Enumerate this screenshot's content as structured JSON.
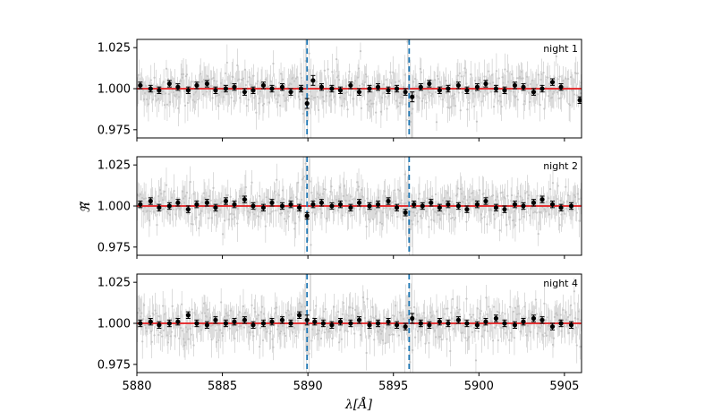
{
  "chart_data": [
    {
      "type": "scatter",
      "panel_label": "night 1",
      "xlim": [
        5880,
        5906
      ],
      "ylim": [
        0.97,
        1.03
      ],
      "yticks": [
        "0.975",
        "1.000",
        "1.025"
      ],
      "vlines_x": [
        5889.95,
        5895.92
      ],
      "model_line_y": 1.0,
      "binned_points": [
        {
          "x": 5880.2,
          "y": 1.002,
          "err": 0.002
        },
        {
          "x": 5880.8,
          "y": 1.0,
          "err": 0.002
        },
        {
          "x": 5881.3,
          "y": 0.999,
          "err": 0.002
        },
        {
          "x": 5881.9,
          "y": 1.003,
          "err": 0.002
        },
        {
          "x": 5882.4,
          "y": 1.001,
          "err": 0.002
        },
        {
          "x": 5883.0,
          "y": 0.999,
          "err": 0.002
        },
        {
          "x": 5883.5,
          "y": 1.002,
          "err": 0.002
        },
        {
          "x": 5884.1,
          "y": 1.003,
          "err": 0.002
        },
        {
          "x": 5884.6,
          "y": 0.999,
          "err": 0.002
        },
        {
          "x": 5885.2,
          "y": 1.0,
          "err": 0.002
        },
        {
          "x": 5885.7,
          "y": 1.001,
          "err": 0.002
        },
        {
          "x": 5886.3,
          "y": 0.998,
          "err": 0.002
        },
        {
          "x": 5886.8,
          "y": 0.999,
          "err": 0.002
        },
        {
          "x": 5887.4,
          "y": 1.002,
          "err": 0.002
        },
        {
          "x": 5887.9,
          "y": 1.0,
          "err": 0.002
        },
        {
          "x": 5888.5,
          "y": 1.001,
          "err": 0.002
        },
        {
          "x": 5889.0,
          "y": 0.998,
          "err": 0.002
        },
        {
          "x": 5889.6,
          "y": 1.0,
          "err": 0.002
        },
        {
          "x": 5889.95,
          "y": 0.991,
          "err": 0.003
        },
        {
          "x": 5890.3,
          "y": 1.005,
          "err": 0.003
        },
        {
          "x": 5890.8,
          "y": 1.001,
          "err": 0.002
        },
        {
          "x": 5891.4,
          "y": 1.0,
          "err": 0.002
        },
        {
          "x": 5891.9,
          "y": 0.999,
          "err": 0.002
        },
        {
          "x": 5892.5,
          "y": 1.002,
          "err": 0.002
        },
        {
          "x": 5893.0,
          "y": 0.998,
          "err": 0.002
        },
        {
          "x": 5893.6,
          "y": 1.0,
          "err": 0.002
        },
        {
          "x": 5894.1,
          "y": 1.001,
          "err": 0.002
        },
        {
          "x": 5894.7,
          "y": 0.999,
          "err": 0.002
        },
        {
          "x": 5895.2,
          "y": 1.0,
          "err": 0.002
        },
        {
          "x": 5895.7,
          "y": 0.998,
          "err": 0.002
        },
        {
          "x": 5896.1,
          "y": 0.995,
          "err": 0.003
        },
        {
          "x": 5896.6,
          "y": 1.001,
          "err": 0.002
        },
        {
          "x": 5897.1,
          "y": 1.003,
          "err": 0.002
        },
        {
          "x": 5897.7,
          "y": 0.999,
          "err": 0.002
        },
        {
          "x": 5898.2,
          "y": 1.0,
          "err": 0.002
        },
        {
          "x": 5898.8,
          "y": 1.002,
          "err": 0.002
        },
        {
          "x": 5899.3,
          "y": 0.999,
          "err": 0.002
        },
        {
          "x": 5899.9,
          "y": 1.001,
          "err": 0.002
        },
        {
          "x": 5900.4,
          "y": 1.003,
          "err": 0.002
        },
        {
          "x": 5901.0,
          "y": 1.0,
          "err": 0.002
        },
        {
          "x": 5901.5,
          "y": 0.999,
          "err": 0.002
        },
        {
          "x": 5902.1,
          "y": 1.002,
          "err": 0.002
        },
        {
          "x": 5902.6,
          "y": 1.001,
          "err": 0.002
        },
        {
          "x": 5903.2,
          "y": 0.998,
          "err": 0.002
        },
        {
          "x": 5903.7,
          "y": 1.0,
          "err": 0.002
        },
        {
          "x": 5904.3,
          "y": 1.004,
          "err": 0.002
        },
        {
          "x": 5904.8,
          "y": 1.001,
          "err": 0.002
        },
        {
          "x": 5905.9,
          "y": 0.993,
          "err": 0.002
        }
      ]
    },
    {
      "type": "scatter",
      "panel_label": "night 2",
      "xlim": [
        5880,
        5906
      ],
      "ylim": [
        0.97,
        1.03
      ],
      "yticks": [
        "0.975",
        "1.000",
        "1.025"
      ],
      "vlines_x": [
        5889.95,
        5895.92
      ],
      "model_line_y": 1.0,
      "binned_points": [
        {
          "x": 5880.2,
          "y": 1.001,
          "err": 0.002
        },
        {
          "x": 5880.8,
          "y": 1.003,
          "err": 0.002
        },
        {
          "x": 5881.3,
          "y": 0.999,
          "err": 0.002
        },
        {
          "x": 5881.9,
          "y": 1.0,
          "err": 0.002
        },
        {
          "x": 5882.4,
          "y": 1.002,
          "err": 0.002
        },
        {
          "x": 5883.0,
          "y": 0.998,
          "err": 0.002
        },
        {
          "x": 5883.5,
          "y": 1.001,
          "err": 0.002
        },
        {
          "x": 5884.1,
          "y": 1.002,
          "err": 0.002
        },
        {
          "x": 5884.6,
          "y": 0.999,
          "err": 0.002
        },
        {
          "x": 5885.2,
          "y": 1.003,
          "err": 0.002
        },
        {
          "x": 5885.7,
          "y": 1.001,
          "err": 0.002
        },
        {
          "x": 5886.3,
          "y": 1.004,
          "err": 0.002
        },
        {
          "x": 5886.8,
          "y": 1.0,
          "err": 0.002
        },
        {
          "x": 5887.4,
          "y": 0.999,
          "err": 0.002
        },
        {
          "x": 5887.9,
          "y": 1.002,
          "err": 0.002
        },
        {
          "x": 5888.5,
          "y": 1.0,
          "err": 0.002
        },
        {
          "x": 5889.0,
          "y": 1.001,
          "err": 0.002
        },
        {
          "x": 5889.5,
          "y": 0.999,
          "err": 0.002
        },
        {
          "x": 5889.95,
          "y": 0.994,
          "err": 0.002
        },
        {
          "x": 5890.3,
          "y": 1.001,
          "err": 0.002
        },
        {
          "x": 5890.8,
          "y": 1.002,
          "err": 0.002
        },
        {
          "x": 5891.4,
          "y": 1.0,
          "err": 0.002
        },
        {
          "x": 5891.9,
          "y": 1.001,
          "err": 0.002
        },
        {
          "x": 5892.5,
          "y": 0.999,
          "err": 0.002
        },
        {
          "x": 5893.0,
          "y": 1.002,
          "err": 0.002
        },
        {
          "x": 5893.6,
          "y": 1.0,
          "err": 0.002
        },
        {
          "x": 5894.1,
          "y": 1.001,
          "err": 0.002
        },
        {
          "x": 5894.7,
          "y": 1.003,
          "err": 0.002
        },
        {
          "x": 5895.2,
          "y": 0.999,
          "err": 0.002
        },
        {
          "x": 5895.7,
          "y": 0.996,
          "err": 0.002
        },
        {
          "x": 5896.2,
          "y": 1.001,
          "err": 0.002
        },
        {
          "x": 5896.7,
          "y": 1.0,
          "err": 0.002
        },
        {
          "x": 5897.2,
          "y": 1.002,
          "err": 0.002
        },
        {
          "x": 5897.7,
          "y": 0.999,
          "err": 0.002
        },
        {
          "x": 5898.2,
          "y": 1.001,
          "err": 0.002
        },
        {
          "x": 5898.8,
          "y": 1.0,
          "err": 0.002
        },
        {
          "x": 5899.3,
          "y": 0.998,
          "err": 0.002
        },
        {
          "x": 5899.9,
          "y": 1.001,
          "err": 0.002
        },
        {
          "x": 5900.4,
          "y": 1.003,
          "err": 0.002
        },
        {
          "x": 5901.0,
          "y": 0.999,
          "err": 0.002
        },
        {
          "x": 5901.5,
          "y": 0.998,
          "err": 0.002
        },
        {
          "x": 5902.1,
          "y": 1.001,
          "err": 0.002
        },
        {
          "x": 5902.6,
          "y": 1.0,
          "err": 0.002
        },
        {
          "x": 5903.2,
          "y": 1.002,
          "err": 0.002
        },
        {
          "x": 5903.7,
          "y": 1.004,
          "err": 0.002
        },
        {
          "x": 5904.3,
          "y": 1.001,
          "err": 0.002
        },
        {
          "x": 5904.8,
          "y": 0.999,
          "err": 0.002
        },
        {
          "x": 5905.4,
          "y": 1.0,
          "err": 0.002
        }
      ]
    },
    {
      "type": "scatter",
      "panel_label": "night 4",
      "xlim": [
        5880,
        5906
      ],
      "ylim": [
        0.97,
        1.03
      ],
      "yticks": [
        "0.975",
        "1.000",
        "1.025"
      ],
      "xticks": [
        "5880",
        "5885",
        "5890",
        "5895",
        "5900",
        "5905"
      ],
      "xtick_values": [
        5880,
        5885,
        5890,
        5895,
        5900,
        5905
      ],
      "vlines_x": [
        5889.95,
        5895.92
      ],
      "model_line_y": 1.0,
      "binned_points": [
        {
          "x": 5880.2,
          "y": 1.0,
          "err": 0.002
        },
        {
          "x": 5880.8,
          "y": 1.001,
          "err": 0.002
        },
        {
          "x": 5881.3,
          "y": 0.999,
          "err": 0.002
        },
        {
          "x": 5881.9,
          "y": 1.0,
          "err": 0.002
        },
        {
          "x": 5882.4,
          "y": 1.001,
          "err": 0.002
        },
        {
          "x": 5883.0,
          "y": 1.005,
          "err": 0.002
        },
        {
          "x": 5883.5,
          "y": 1.0,
          "err": 0.002
        },
        {
          "x": 5884.1,
          "y": 0.999,
          "err": 0.002
        },
        {
          "x": 5884.6,
          "y": 1.002,
          "err": 0.002
        },
        {
          "x": 5885.2,
          "y": 1.0,
          "err": 0.002
        },
        {
          "x": 5885.7,
          "y": 1.001,
          "err": 0.002
        },
        {
          "x": 5886.3,
          "y": 1.002,
          "err": 0.002
        },
        {
          "x": 5886.8,
          "y": 0.999,
          "err": 0.002
        },
        {
          "x": 5887.4,
          "y": 1.0,
          "err": 0.002
        },
        {
          "x": 5887.9,
          "y": 1.001,
          "err": 0.002
        },
        {
          "x": 5888.5,
          "y": 1.002,
          "err": 0.002
        },
        {
          "x": 5889.0,
          "y": 1.0,
          "err": 0.002
        },
        {
          "x": 5889.5,
          "y": 1.005,
          "err": 0.002
        },
        {
          "x": 5889.95,
          "y": 1.002,
          "err": 0.003
        },
        {
          "x": 5890.4,
          "y": 1.001,
          "err": 0.002
        },
        {
          "x": 5890.9,
          "y": 1.0,
          "err": 0.002
        },
        {
          "x": 5891.4,
          "y": 0.999,
          "err": 0.002
        },
        {
          "x": 5891.9,
          "y": 1.001,
          "err": 0.002
        },
        {
          "x": 5892.5,
          "y": 1.0,
          "err": 0.002
        },
        {
          "x": 5893.0,
          "y": 1.002,
          "err": 0.002
        },
        {
          "x": 5893.6,
          "y": 0.999,
          "err": 0.002
        },
        {
          "x": 5894.1,
          "y": 1.0,
          "err": 0.002
        },
        {
          "x": 5894.7,
          "y": 1.001,
          "err": 0.002
        },
        {
          "x": 5895.2,
          "y": 0.999,
          "err": 0.002
        },
        {
          "x": 5895.7,
          "y": 0.998,
          "err": 0.002
        },
        {
          "x": 5896.1,
          "y": 1.003,
          "err": 0.003
        },
        {
          "x": 5896.6,
          "y": 1.0,
          "err": 0.002
        },
        {
          "x": 5897.1,
          "y": 0.999,
          "err": 0.002
        },
        {
          "x": 5897.7,
          "y": 1.001,
          "err": 0.002
        },
        {
          "x": 5898.2,
          "y": 1.0,
          "err": 0.002
        },
        {
          "x": 5898.8,
          "y": 1.002,
          "err": 0.002
        },
        {
          "x": 5899.3,
          "y": 1.0,
          "err": 0.002
        },
        {
          "x": 5899.9,
          "y": 0.999,
          "err": 0.002
        },
        {
          "x": 5900.4,
          "y": 1.001,
          "err": 0.002
        },
        {
          "x": 5901.0,
          "y": 1.003,
          "err": 0.002
        },
        {
          "x": 5901.5,
          "y": 1.0,
          "err": 0.002
        },
        {
          "x": 5902.1,
          "y": 0.999,
          "err": 0.002
        },
        {
          "x": 5902.6,
          "y": 1.001,
          "err": 0.002
        },
        {
          "x": 5903.2,
          "y": 1.003,
          "err": 0.002
        },
        {
          "x": 5903.7,
          "y": 1.002,
          "err": 0.002
        },
        {
          "x": 5904.3,
          "y": 0.998,
          "err": 0.002
        },
        {
          "x": 5904.8,
          "y": 1.0,
          "err": 0.002
        },
        {
          "x": 5905.4,
          "y": 0.999,
          "err": 0.002
        }
      ]
    }
  ],
  "xlabel": "λ[Å]",
  "ylabel": "ℜ̃",
  "colors": {
    "binned_points": "#000000",
    "raw_points": "#bbbbbb",
    "model_line": "#e41a1c",
    "vlines": "#1f77b4"
  }
}
